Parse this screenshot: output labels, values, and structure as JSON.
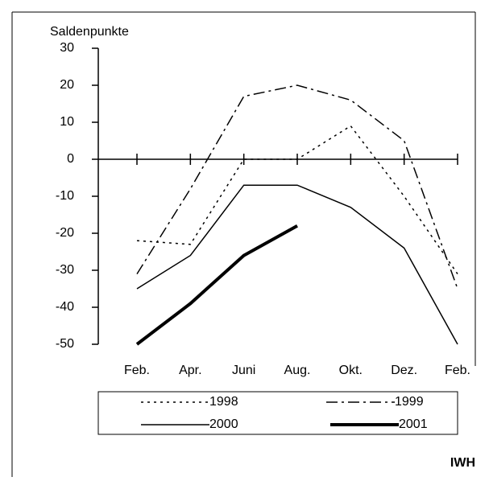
{
  "chart_data": {
    "type": "line",
    "y_label": "Saldenpunkte",
    "categories": [
      "Feb.",
      "Apr.",
      "Juni",
      "Aug.",
      "Okt.",
      "Dez.",
      "Feb."
    ],
    "ylim": [
      -50,
      30
    ],
    "yticks": [
      -50,
      -40,
      -30,
      -20,
      -10,
      0,
      10,
      20,
      30
    ],
    "series": [
      {
        "name": "1998",
        "color": "#000000",
        "style": "dotted",
        "width": 1.5,
        "values": [
          -22,
          -23,
          0,
          0,
          9,
          -10,
          -31
        ]
      },
      {
        "name": "1999",
        "color": "#000000",
        "style": "dashdot",
        "width": 1.5,
        "values": [
          -31,
          -8,
          17,
          20,
          16,
          5,
          -35
        ]
      },
      {
        "name": "2000",
        "color": "#000000",
        "style": "solid",
        "width": 1.5,
        "values": [
          -35,
          -26,
          -7,
          -7,
          -13,
          -24,
          -50
        ]
      },
      {
        "name": "2001",
        "color": "#000000",
        "style": "solid",
        "width": 4,
        "values": [
          -50,
          -39,
          -26,
          -18,
          null,
          null,
          null
        ]
      }
    ],
    "source": "IWH"
  }
}
